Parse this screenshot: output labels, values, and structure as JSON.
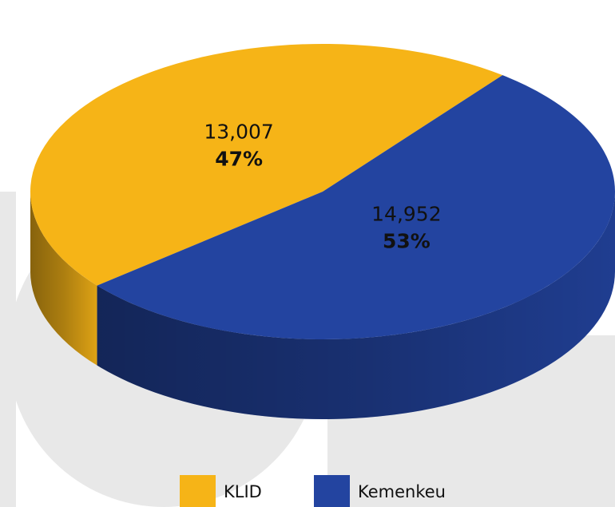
{
  "chart_data": {
    "type": "pie3d",
    "categories": [
      "KLID",
      "Kemenkeu"
    ],
    "values": [
      13007,
      14952
    ],
    "value_labels": [
      "13,007",
      "14,952"
    ],
    "percent_labels": [
      "47%",
      "53%"
    ],
    "colors": [
      "#f6b417",
      "#2344a0"
    ],
    "legend": "bottom"
  }
}
